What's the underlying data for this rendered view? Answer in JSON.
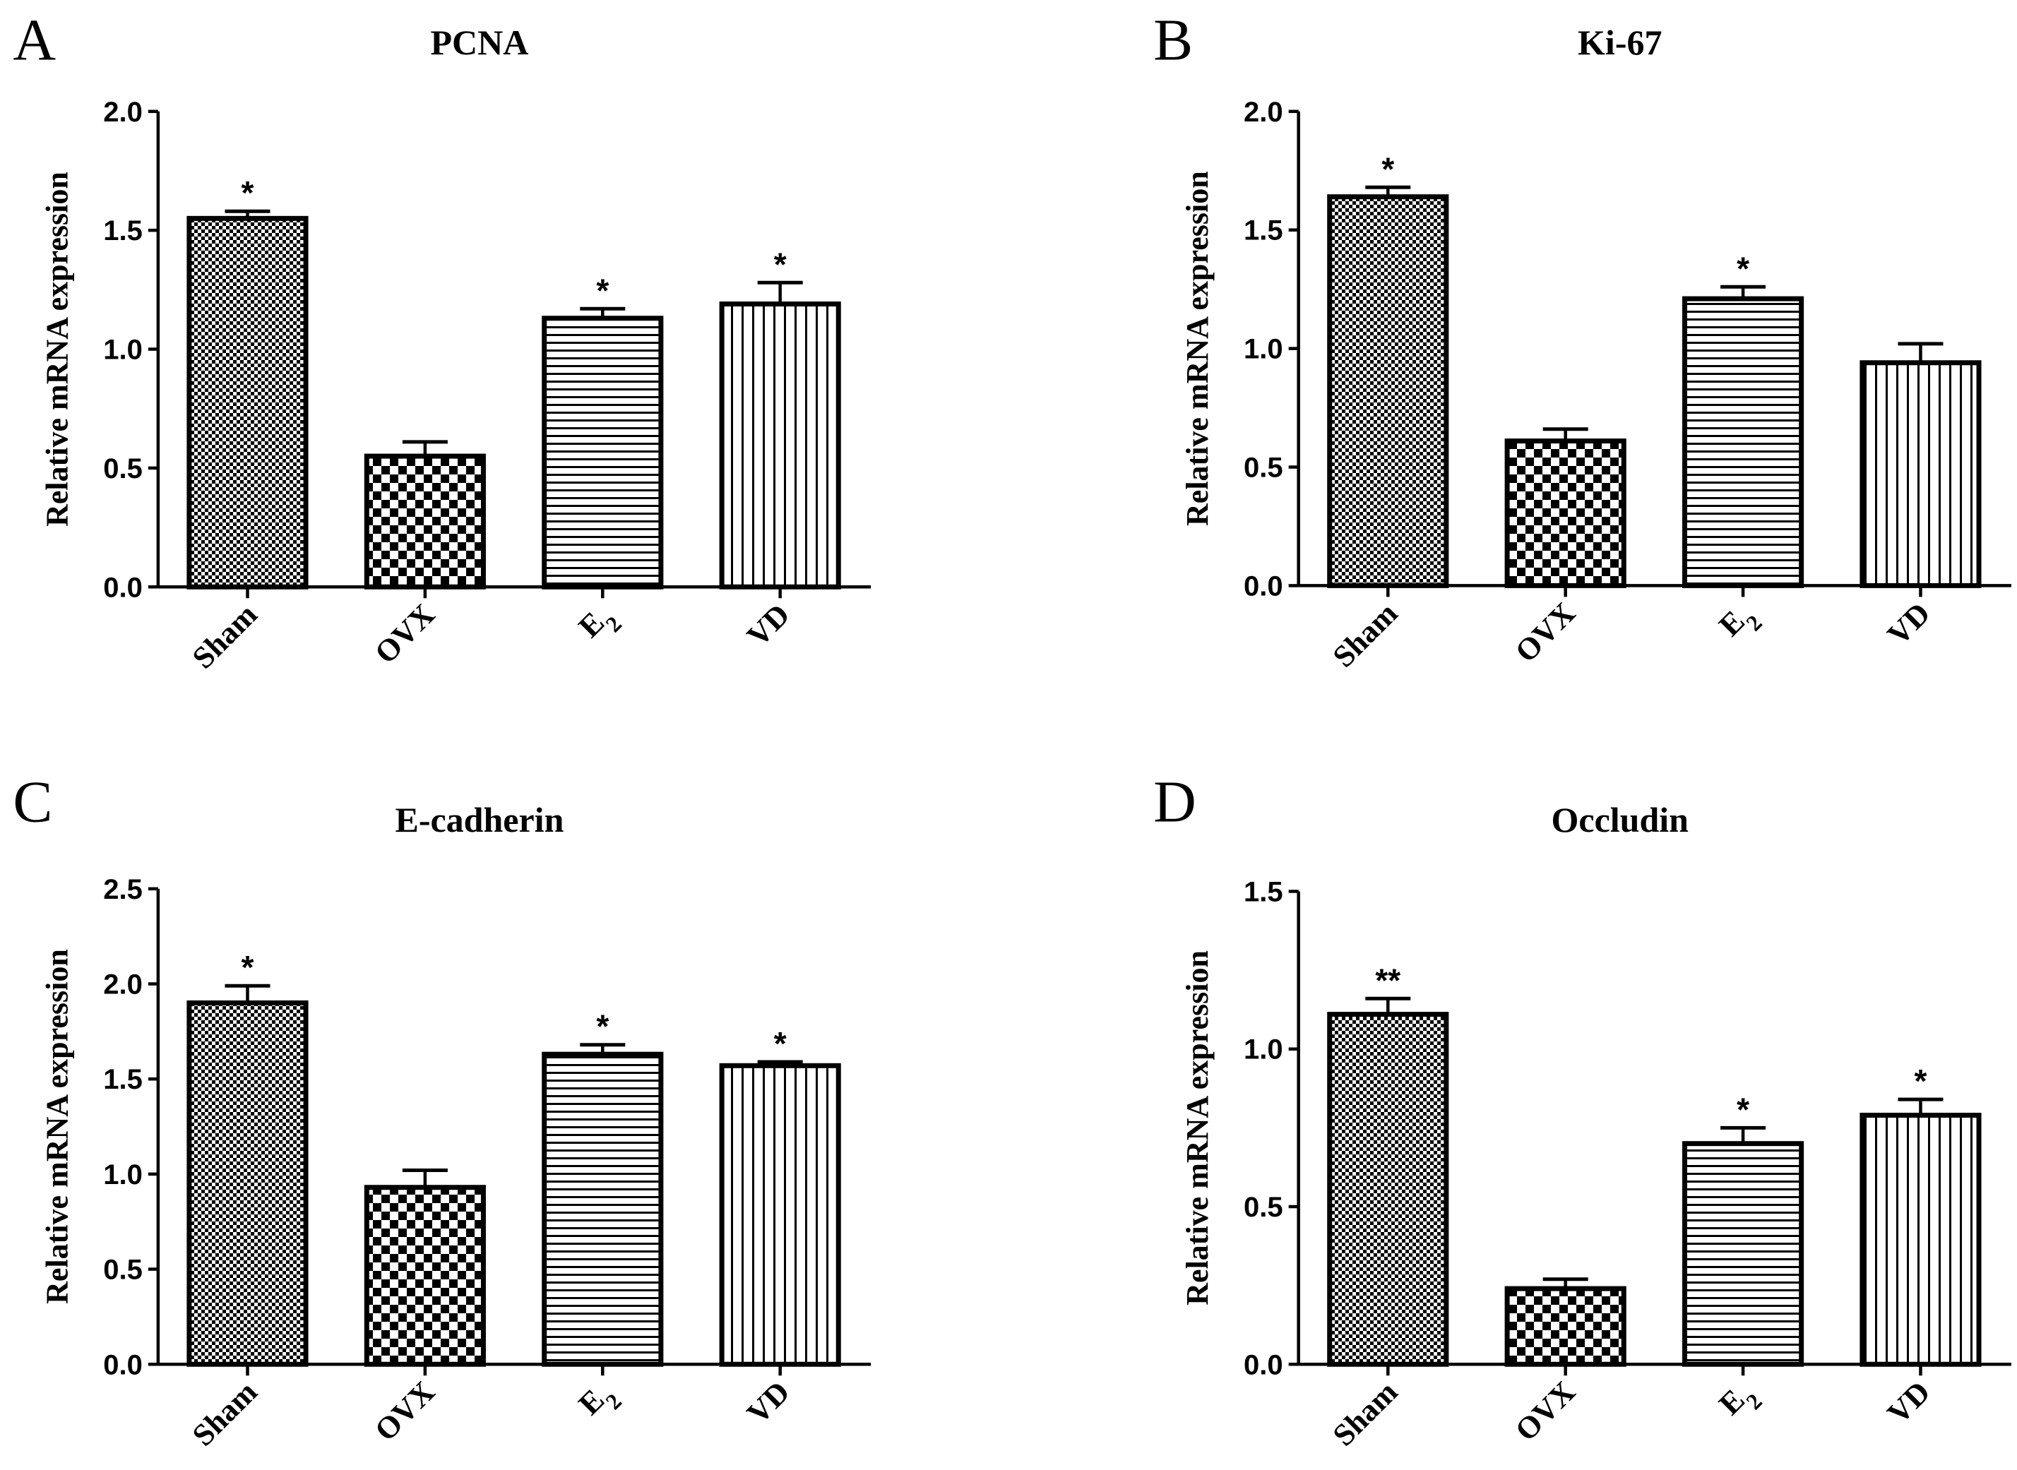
{
  "figure": {
    "categories_display": [
      {
        "main": "Sham",
        "sub": ""
      },
      {
        "main": "OVX",
        "sub": ""
      },
      {
        "main": "E",
        "sub": "2"
      },
      {
        "main": "VD",
        "sub": ""
      }
    ]
  },
  "chart_data": [
    {
      "panel": "A",
      "type": "bar",
      "title": "PCNA",
      "ylabel": "Relative mRNA expression",
      "xlabel": "",
      "categories": [
        "Sham",
        "OVX",
        "E2",
        "VD"
      ],
      "values": [
        1.55,
        0.55,
        1.13,
        1.19
      ],
      "errors": [
        0.03,
        0.06,
        0.04,
        0.09
      ],
      "significance": [
        "*",
        "",
        "*",
        "*"
      ],
      "patterns": [
        "fine-check",
        "coarse-check",
        "horizontal",
        "vertical"
      ],
      "ylim": [
        0,
        2.0
      ],
      "yticks": [
        "0.0",
        "0.5",
        "1.0",
        "1.5",
        "2.0"
      ],
      "grid": false
    },
    {
      "panel": "B",
      "type": "bar",
      "title": "Ki-67",
      "ylabel": "Relative mRNA expression",
      "xlabel": "",
      "categories": [
        "Sham",
        "OVX",
        "E2",
        "VD"
      ],
      "values": [
        1.64,
        0.61,
        1.21,
        0.94
      ],
      "errors": [
        0.04,
        0.05,
        0.05,
        0.08
      ],
      "significance": [
        "*",
        "",
        "*",
        ""
      ],
      "patterns": [
        "fine-check",
        "coarse-check",
        "horizontal",
        "vertical"
      ],
      "ylim": [
        0,
        2.0
      ],
      "yticks": [
        "0.0",
        "0.5",
        "1.0",
        "1.5",
        "2.0"
      ],
      "grid": false
    },
    {
      "panel": "C",
      "type": "bar",
      "title": "E-cadherin",
      "ylabel": "Relative mRNA expression",
      "xlabel": "",
      "categories": [
        "Sham",
        "OVX",
        "E2",
        "VD"
      ],
      "values": [
        1.9,
        0.93,
        1.63,
        1.57
      ],
      "errors": [
        0.09,
        0.09,
        0.05,
        0.02
      ],
      "significance": [
        "*",
        "",
        "*",
        "*"
      ],
      "patterns": [
        "fine-check",
        "coarse-check",
        "horizontal",
        "vertical"
      ],
      "ylim": [
        0,
        2.5
      ],
      "yticks": [
        "0.0",
        "0.5",
        "1.0",
        "1.5",
        "2.0",
        "2.5"
      ],
      "grid": false
    },
    {
      "panel": "D",
      "type": "bar",
      "title": "Occludin",
      "ylabel": "Relative mRNA expression",
      "xlabel": "",
      "categories": [
        "Sham",
        "OVX",
        "E2",
        "VD"
      ],
      "values": [
        1.11,
        0.24,
        0.7,
        0.79
      ],
      "errors": [
        0.05,
        0.03,
        0.05,
        0.05
      ],
      "significance": [
        "**",
        "",
        "*",
        "*"
      ],
      "patterns": [
        "fine-check",
        "coarse-check",
        "horizontal",
        "vertical"
      ],
      "ylim": [
        0,
        1.5
      ],
      "yticks": [
        "0.0",
        "0.5",
        "1.0",
        "1.5"
      ],
      "grid": false
    }
  ]
}
